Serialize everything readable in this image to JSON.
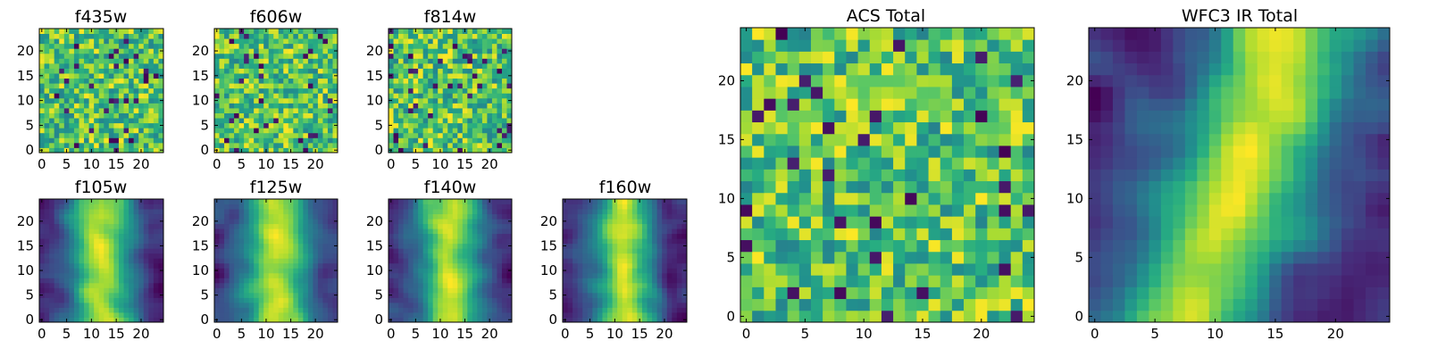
{
  "chart_data": [
    {
      "type": "heatmap",
      "title": "f435w",
      "colormap": "viridis",
      "grid_size": [
        25,
        25
      ],
      "x_ticks": [
        0,
        5,
        10,
        15,
        20
      ],
      "y_ticks": [
        0,
        5,
        10,
        15,
        20
      ],
      "xlim": [
        -0.5,
        24.5
      ],
      "ylim": [
        -0.5,
        24.5
      ],
      "texture": "pixel noise",
      "seed": 435
    },
    {
      "type": "heatmap",
      "title": "f606w",
      "colormap": "viridis",
      "grid_size": [
        25,
        25
      ],
      "x_ticks": [
        0,
        5,
        10,
        15,
        20
      ],
      "y_ticks": [
        0,
        5,
        10,
        15,
        20
      ],
      "xlim": [
        -0.5,
        24.5
      ],
      "ylim": [
        -0.5,
        24.5
      ],
      "texture": "pixel noise",
      "seed": 606
    },
    {
      "type": "heatmap",
      "title": "f814w",
      "colormap": "viridis",
      "grid_size": [
        25,
        25
      ],
      "x_ticks": [
        0,
        5,
        10,
        15,
        20
      ],
      "y_ticks": [
        0,
        5,
        10,
        15,
        20
      ],
      "xlim": [
        -0.5,
        24.5
      ],
      "ylim": [
        -0.5,
        24.5
      ],
      "texture": "pixel noise",
      "seed": 814
    },
    {
      "type": "heatmap",
      "title": "f105w",
      "colormap": "viridis",
      "grid_size": [
        25,
        25
      ],
      "x_ticks": [
        0,
        5,
        10,
        15,
        20
      ],
      "y_ticks": [
        0,
        5,
        10,
        15,
        20
      ],
      "xlim": [
        -0.5,
        24.5
      ],
      "ylim": [
        -0.5,
        24.5
      ],
      "texture": "smooth, bright central band",
      "seed": 105
    },
    {
      "type": "heatmap",
      "title": "f125w",
      "colormap": "viridis",
      "grid_size": [
        25,
        25
      ],
      "x_ticks": [
        0,
        5,
        10,
        15,
        20
      ],
      "y_ticks": [
        0,
        5,
        10,
        15,
        20
      ],
      "xlim": [
        -0.5,
        24.5
      ],
      "ylim": [
        -0.5,
        24.5
      ],
      "texture": "smooth, bright central band",
      "seed": 125
    },
    {
      "type": "heatmap",
      "title": "f140w",
      "colormap": "viridis",
      "grid_size": [
        25,
        25
      ],
      "x_ticks": [
        0,
        5,
        10,
        15,
        20
      ],
      "y_ticks": [
        0,
        5,
        10,
        15,
        20
      ],
      "xlim": [
        -0.5,
        24.5
      ],
      "ylim": [
        -0.5,
        24.5
      ],
      "texture": "smooth, bright central band",
      "seed": 140
    },
    {
      "type": "heatmap",
      "title": "f160w",
      "colormap": "viridis",
      "grid_size": [
        25,
        25
      ],
      "x_ticks": [
        0,
        5,
        10,
        15,
        20
      ],
      "y_ticks": [
        0,
        5,
        10,
        15,
        20
      ],
      "xlim": [
        -0.5,
        24.5
      ],
      "ylim": [
        -0.5,
        24.5
      ],
      "texture": "smooth, bright central band",
      "seed": 160
    },
    {
      "type": "heatmap",
      "title": "ACS Total",
      "colormap": "viridis",
      "grid_size": [
        25,
        25
      ],
      "x_ticks": [
        0,
        5,
        10,
        15,
        20
      ],
      "y_ticks": [
        0,
        5,
        10,
        15,
        20
      ],
      "xlim": [
        -0.5,
        24.5
      ],
      "ylim": [
        -0.5,
        24.5
      ],
      "texture": "pixel noise",
      "seed": 777
    },
    {
      "type": "heatmap",
      "title": "WFC3 IR Total",
      "colormap": "viridis",
      "grid_size": [
        25,
        25
      ],
      "x_ticks": [
        0,
        5,
        10,
        15,
        20
      ],
      "y_ticks": [
        0,
        5,
        10,
        15,
        20
      ],
      "xlim": [
        -0.5,
        24.5
      ],
      "ylim": [
        -0.5,
        24.5
      ],
      "texture": "smooth, bright diagonal band",
      "seed": 999
    }
  ]
}
